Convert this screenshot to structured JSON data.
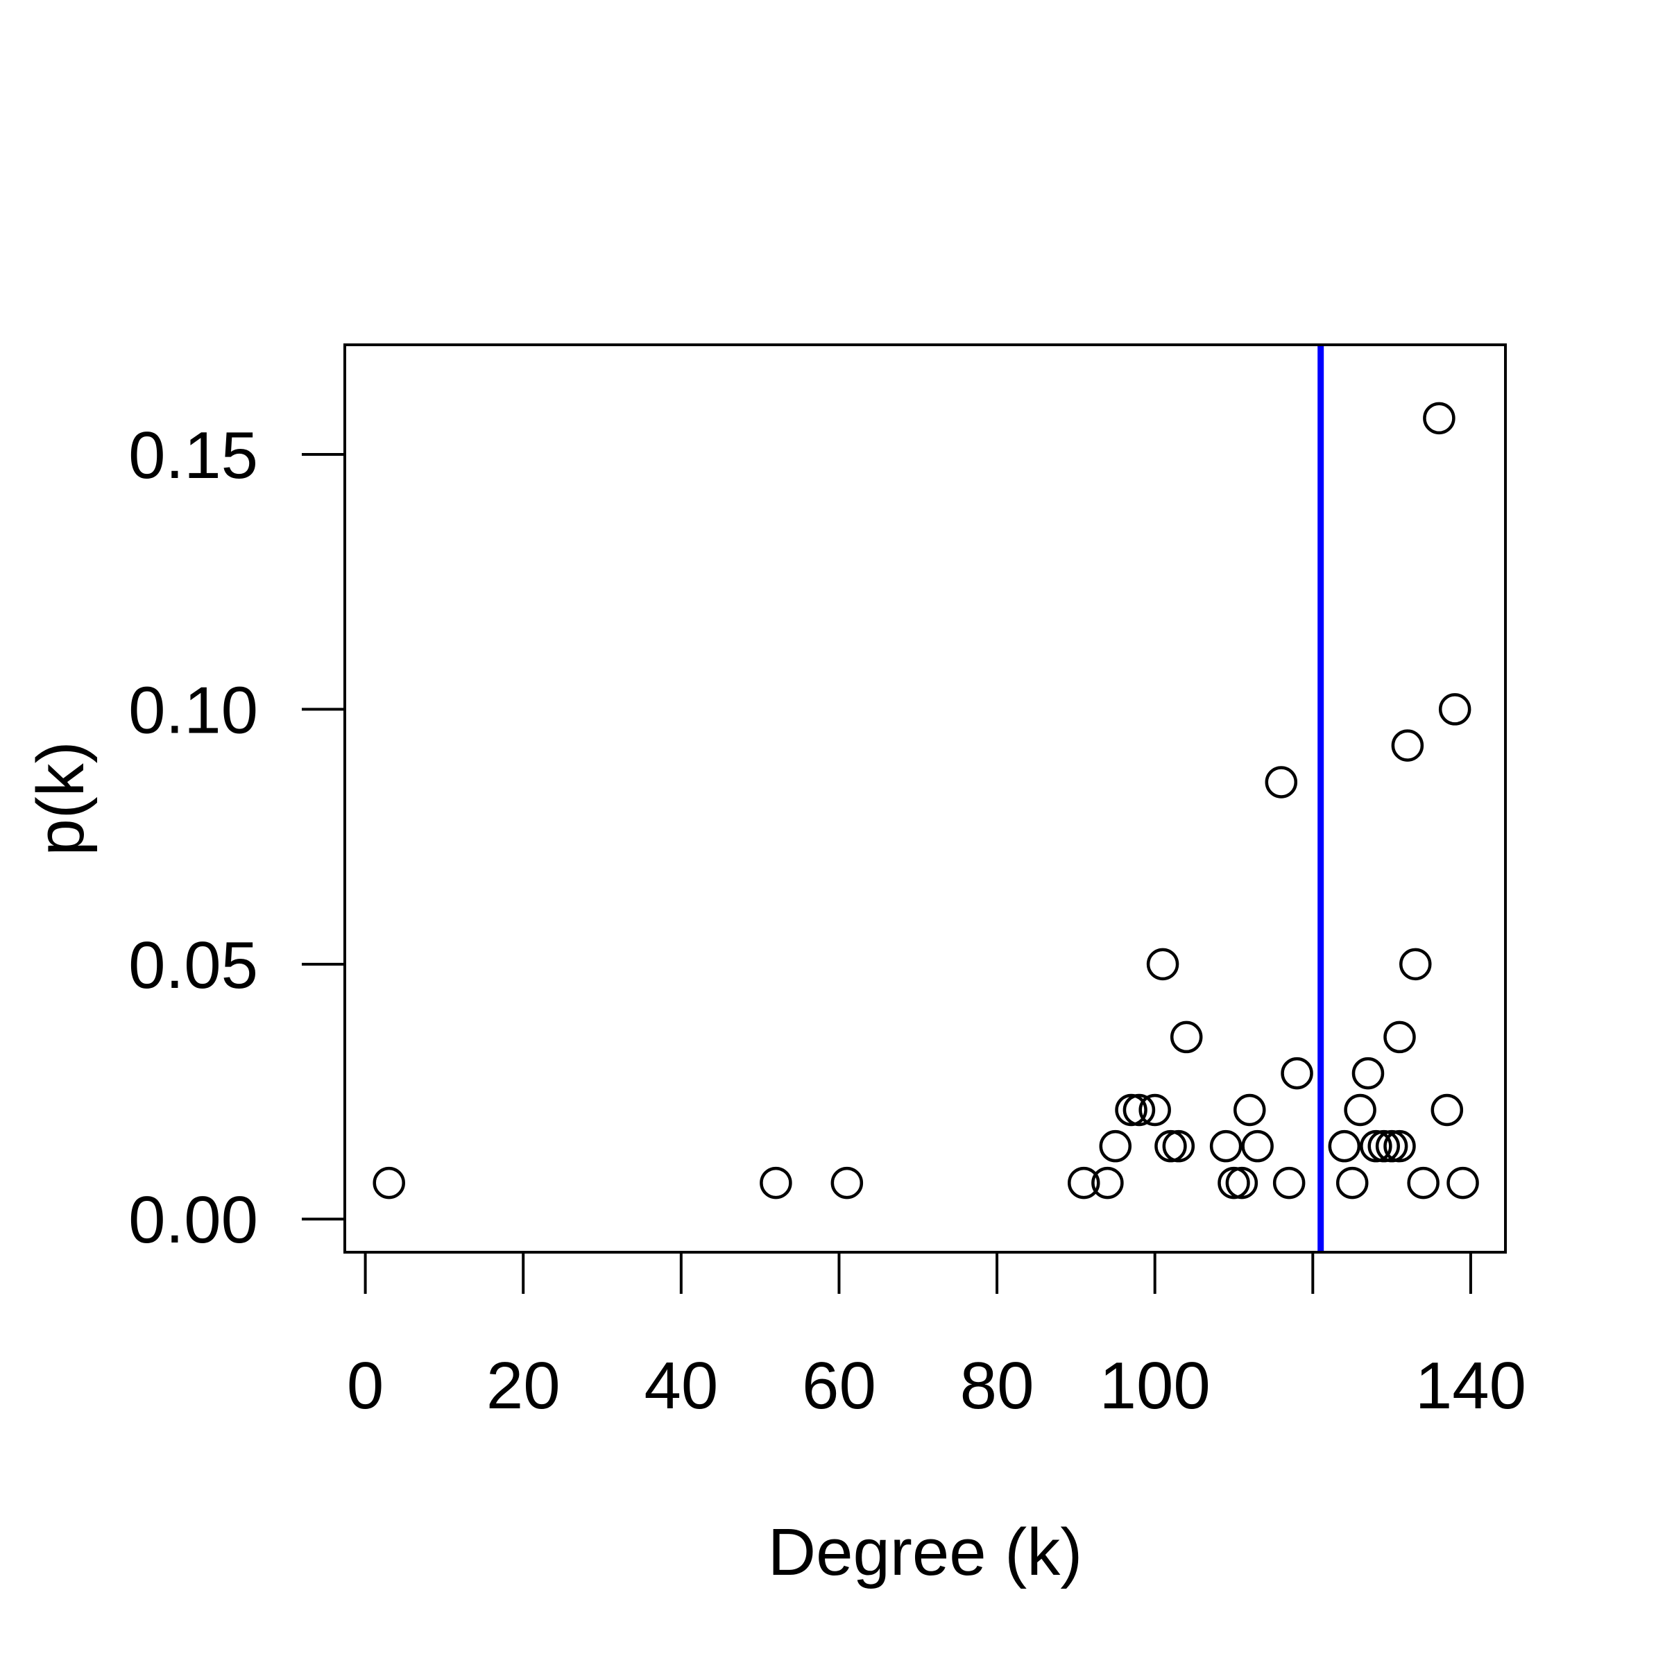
{
  "chart_data": {
    "type": "scatter",
    "title": "",
    "xlabel": "Degree (k)",
    "ylabel": "p(k)",
    "xlim": [
      -2.6,
      144.4
    ],
    "ylim": [
      -0.0065,
      0.1715
    ],
    "x_ticks": [
      0,
      20,
      40,
      60,
      80,
      100,
      120,
      140
    ],
    "x_tick_labels": [
      "0",
      "20",
      "40",
      "60",
      "80",
      "100",
      "",
      "140"
    ],
    "y_ticks": [
      0.0,
      0.05,
      0.1,
      0.15
    ],
    "y_tick_labels": [
      "0.00",
      "0.05",
      "0.10",
      "0.15"
    ],
    "grid": false,
    "legend": "none",
    "marker": "open-circle",
    "reference_line": {
      "orientation": "vertical",
      "x": 121,
      "color": "#0000ff"
    },
    "points": [
      {
        "x": 3,
        "y": 0.0071
      },
      {
        "x": 52,
        "y": 0.0071
      },
      {
        "x": 61,
        "y": 0.0071
      },
      {
        "x": 91,
        "y": 0.0071
      },
      {
        "x": 94,
        "y": 0.0071
      },
      {
        "x": 95,
        "y": 0.0143
      },
      {
        "x": 97,
        "y": 0.0214
      },
      {
        "x": 98,
        "y": 0.0214
      },
      {
        "x": 100,
        "y": 0.0214
      },
      {
        "x": 101,
        "y": 0.05
      },
      {
        "x": 102,
        "y": 0.0143
      },
      {
        "x": 103,
        "y": 0.0143
      },
      {
        "x": 104,
        "y": 0.0357
      },
      {
        "x": 109,
        "y": 0.0143
      },
      {
        "x": 110,
        "y": 0.0071
      },
      {
        "x": 111,
        "y": 0.0071
      },
      {
        "x": 112,
        "y": 0.0214
      },
      {
        "x": 113,
        "y": 0.0143
      },
      {
        "x": 116,
        "y": 0.0857
      },
      {
        "x": 117,
        "y": 0.0071
      },
      {
        "x": 118,
        "y": 0.0286
      },
      {
        "x": 124,
        "y": 0.0143
      },
      {
        "x": 125,
        "y": 0.0071
      },
      {
        "x": 126,
        "y": 0.0214
      },
      {
        "x": 127,
        "y": 0.0286
      },
      {
        "x": 128,
        "y": 0.0143
      },
      {
        "x": 129,
        "y": 0.0143
      },
      {
        "x": 130,
        "y": 0.0143
      },
      {
        "x": 131,
        "y": 0.0143
      },
      {
        "x": 131,
        "y": 0.0357
      },
      {
        "x": 132,
        "y": 0.0929
      },
      {
        "x": 133,
        "y": 0.05
      },
      {
        "x": 134,
        "y": 0.0071
      },
      {
        "x": 136,
        "y": 0.1571
      },
      {
        "x": 137,
        "y": 0.0214
      },
      {
        "x": 138,
        "y": 0.1
      },
      {
        "x": 139,
        "y": 0.0071
      }
    ]
  },
  "colors": {
    "axis": "#000000",
    "points": "#000000",
    "reference_line": "#0000ff",
    "background": "#ffffff"
  }
}
